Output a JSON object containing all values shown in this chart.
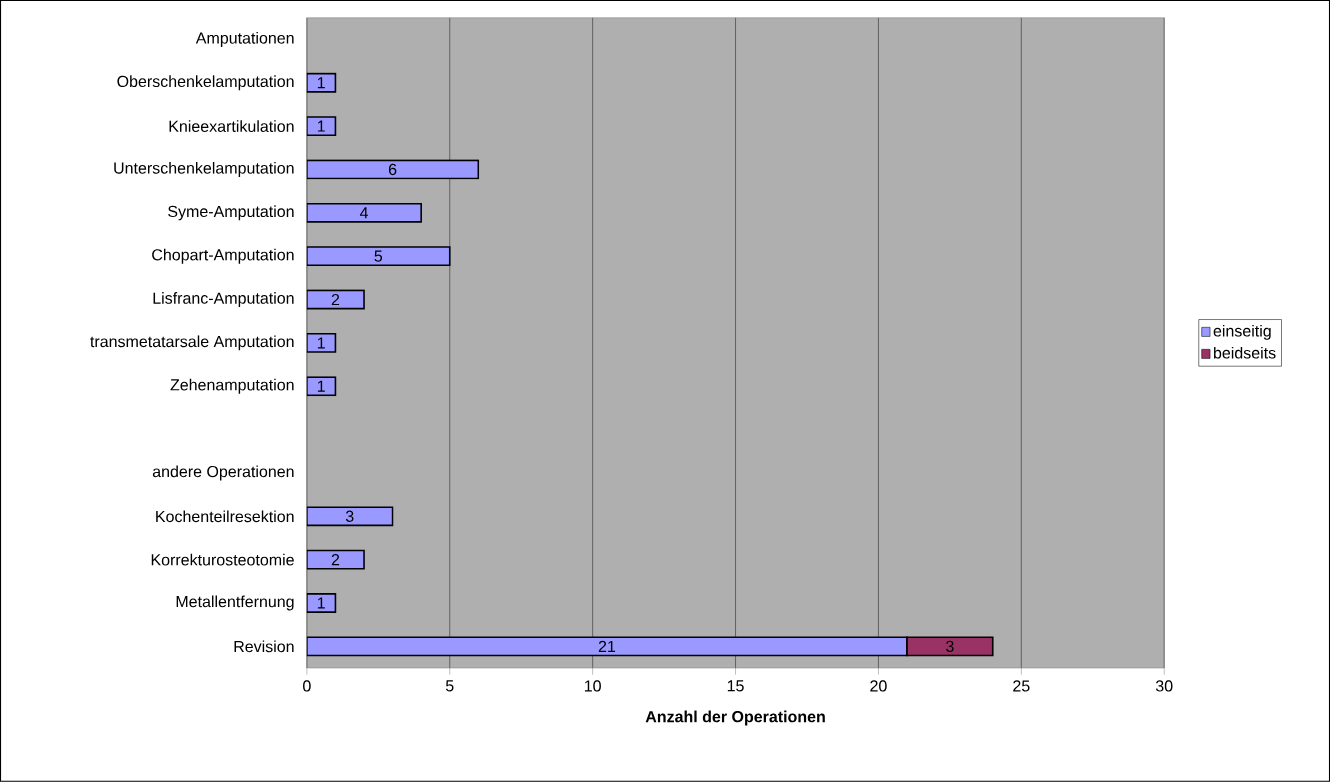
{
  "chart_data": {
    "type": "bar",
    "orientation": "horizontal",
    "stacked": true,
    "xlabel": "Anzahl der Operationen",
    "categories": [
      "Amputationen",
      "Oberschenkelamputation",
      "Knieexartikulation",
      "Unterschenkelamputation",
      "Syme-Amputation",
      "Chopart-Amputation",
      "Lisfranc-Amputation",
      "transmetatarsale Amputation",
      "Zehenamputation",
      null,
      "andere Operationen",
      "Kochenteilresektion",
      "Korrekturosteotomie",
      "Metallentfernung",
      "Revision"
    ],
    "series": [
      {
        "name": "einseitig",
        "color": "#9999ff",
        "values": [
          null,
          1,
          1,
          6,
          4,
          5,
          2,
          1,
          1,
          null,
          null,
          3,
          2,
          1,
          21
        ]
      },
      {
        "name": "beidseits",
        "color": "#993366",
        "values": [
          null,
          null,
          null,
          null,
          null,
          null,
          null,
          null,
          null,
          null,
          null,
          null,
          null,
          null,
          3
        ]
      }
    ],
    "xlim": [
      0,
      30
    ],
    "xticks": [
      0,
      5,
      10,
      15,
      20,
      25,
      30
    ],
    "grid": "x",
    "legend": "right",
    "data_labels": true
  }
}
